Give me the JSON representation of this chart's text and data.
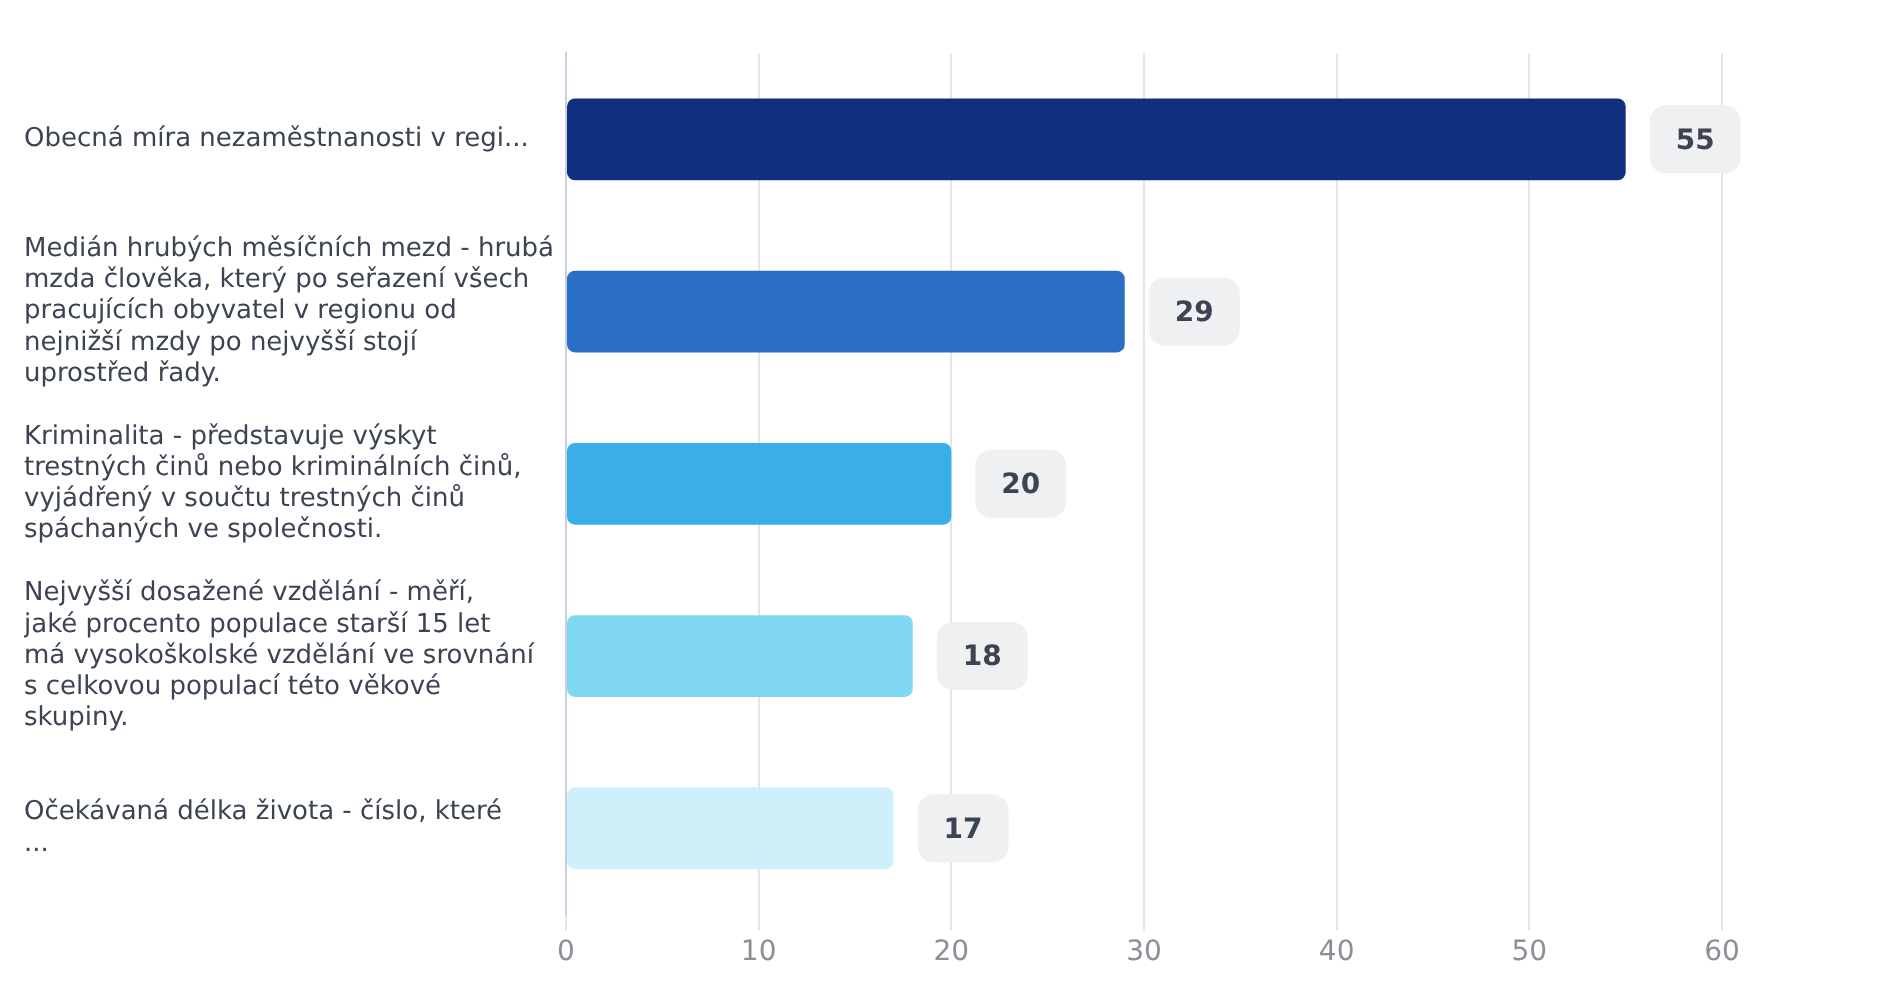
{
  "chart_data": {
    "type": "bar",
    "orientation": "horizontal",
    "categories": [
      "Obecná míra nezaměstnanosti v regi...",
      "Medián hrubých měsíčních mezd - hrubá mzda člověka, který po seřazení všech pracujících obyvatel v regionu od nejnižší mzdy po nejvyšší stojí uprostřed řady.",
      "Kriminalita - představuje výskyt trestných činů nebo kriminálních činů, vyjádřený v součtu trestných činů spáchaných ve společnosti.",
      "Nejvyšší dosažené vzdělání - měří, jaké procento populace starší 15 let má vysokoškolské vzdělání ve srovnání s celkovou populací této věkové skupiny.",
      "Očekávaná délka života - číslo, které ..."
    ],
    "values": [
      55,
      29,
      20,
      18,
      17
    ],
    "colors": [
      "#10307f",
      "#2a6fc4",
      "#3aaee6",
      "#80d8f3",
      "#cdf0fa"
    ],
    "xlim": [
      0,
      60
    ],
    "xticks": [
      0,
      10,
      20,
      30,
      40,
      50,
      60
    ],
    "grid": "x",
    "data_labels": true
  }
}
